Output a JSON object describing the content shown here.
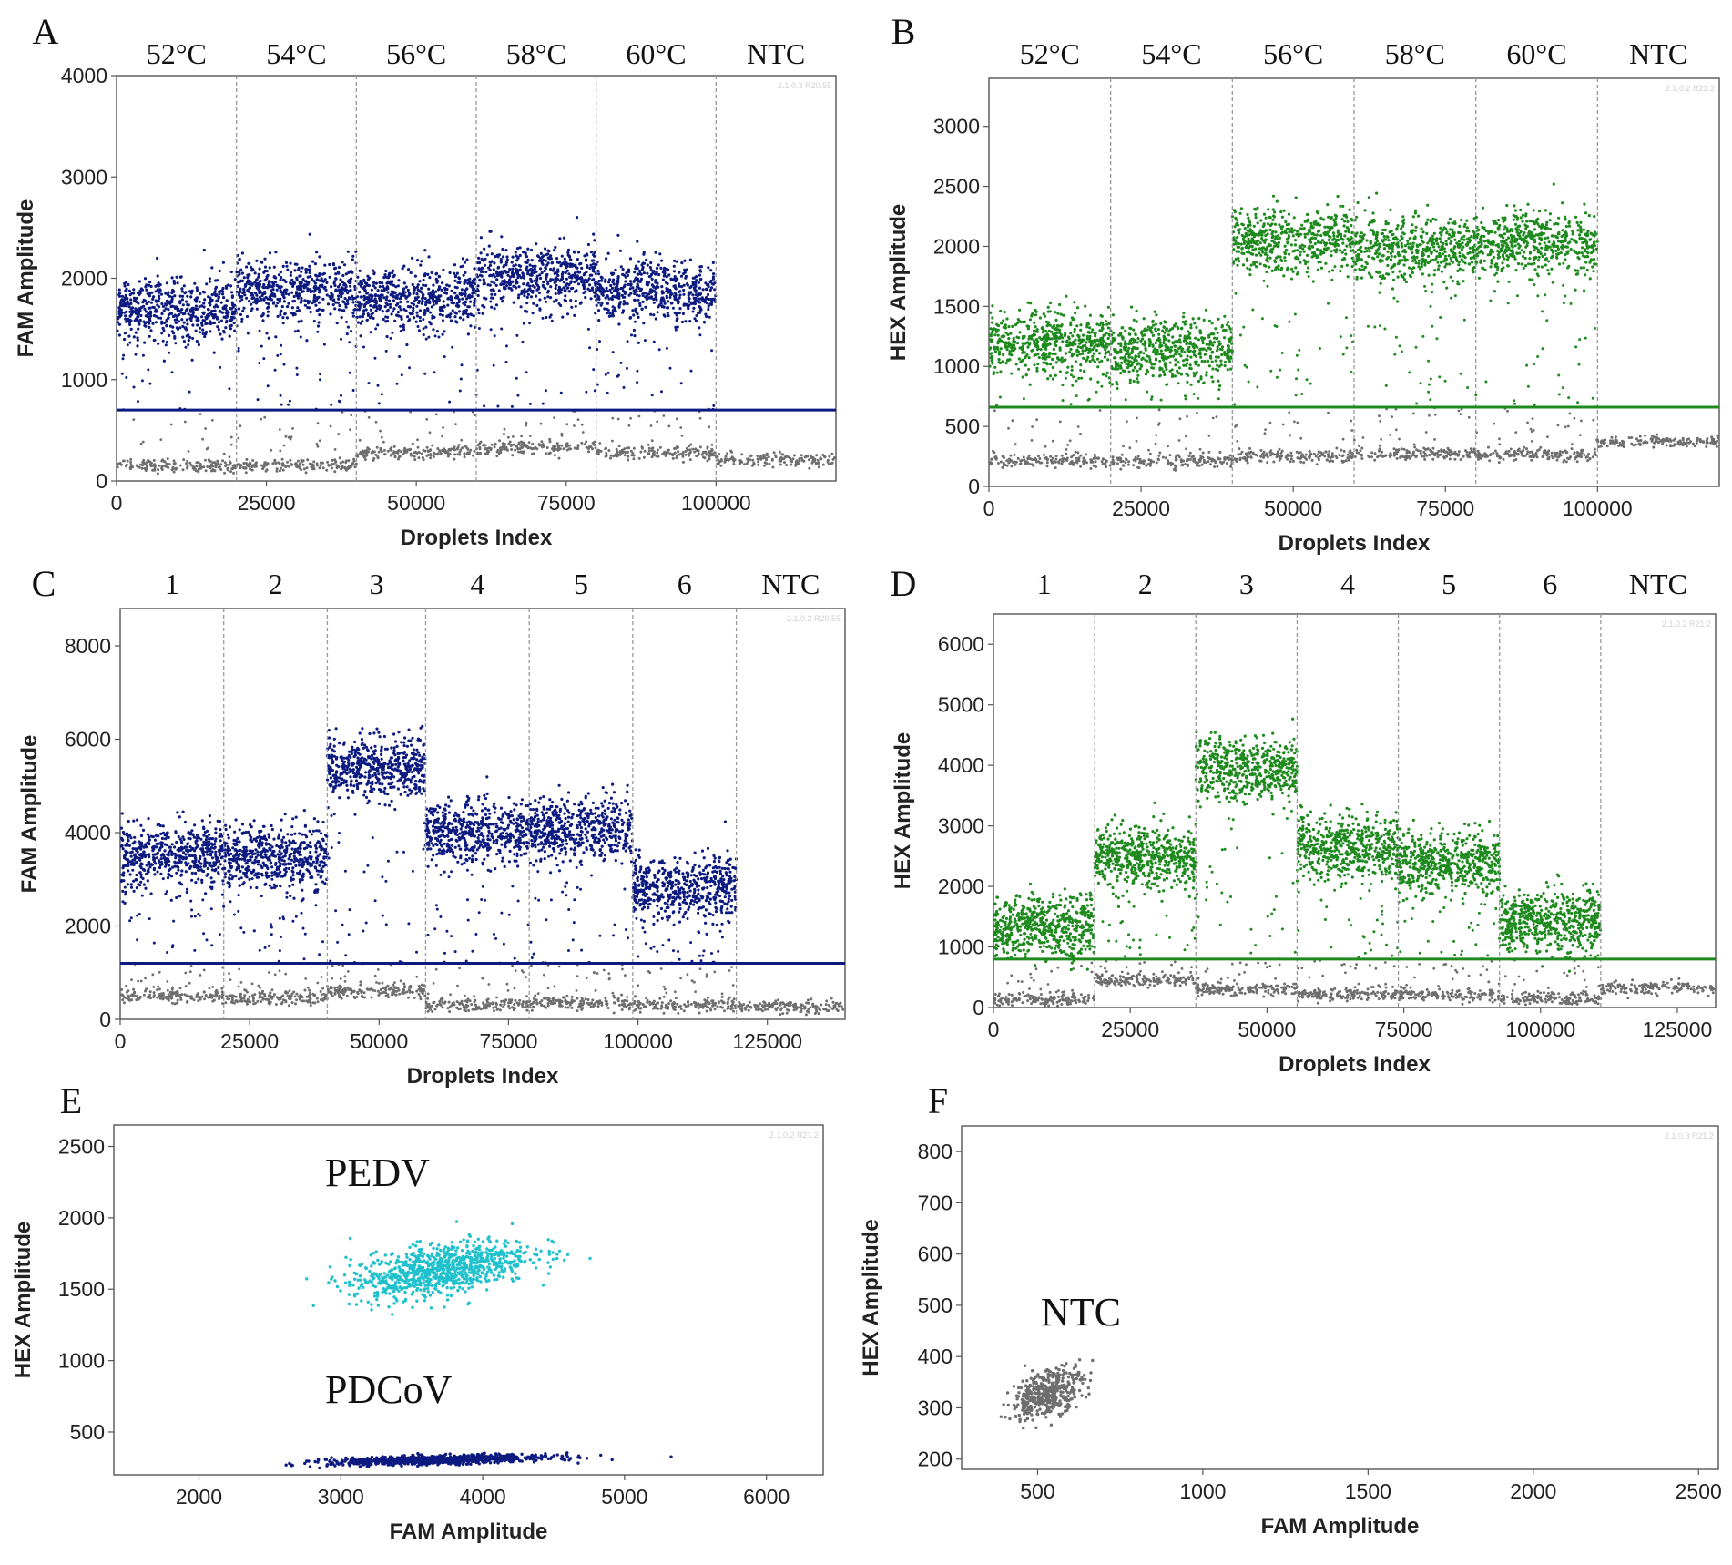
{
  "figure": {
    "colors": {
      "fam": "#0d1b80",
      "hex": "#1e8a1e",
      "neg": "#6e6e6e",
      "pedv": "#1fc1cc",
      "pdcov": "#0d1b80"
    }
  },
  "chart_data": [
    {
      "id": "A",
      "panel_label": "A",
      "type": "scatter",
      "title": "",
      "xlabel": "Droplets Index",
      "ylabel": "FAM Amplitude",
      "xlim": [
        0,
        120000
      ],
      "ylim": [
        0,
        4000
      ],
      "xticks": [
        0,
        25000,
        50000,
        75000,
        100000
      ],
      "yticks": [
        0,
        1000,
        2000,
        3000,
        4000
      ],
      "watermark": "2.1.0.3 R20.55",
      "group_labels": [
        "52°C",
        "54°C",
        "56°C",
        "58°C",
        "60°C",
        "NTC"
      ],
      "group_bounds": [
        0,
        20000,
        40000,
        60000,
        80000,
        100000,
        120000
      ],
      "positive_means": [
        1700,
        1900,
        1800,
        2020,
        1880,
        null
      ],
      "negative_means": [
        150,
        150,
        280,
        330,
        280,
        210
      ],
      "threshold": 700,
      "channel": "fam"
    },
    {
      "id": "B",
      "panel_label": "B",
      "type": "scatter",
      "title": "",
      "xlabel": "Droplets Index",
      "ylabel": "HEX Amplitude",
      "xlim": [
        0,
        120000
      ],
      "ylim": [
        0,
        3400
      ],
      "xticks": [
        0,
        25000,
        50000,
        75000,
        100000
      ],
      "yticks": [
        0,
        500,
        1000,
        1500,
        2000,
        2500,
        3000
      ],
      "watermark": "2.1.0.2 R21.2",
      "group_labels": [
        "52°C",
        "54°C",
        "56°C",
        "58°C",
        "60°C",
        "NTC"
      ],
      "group_bounds": [
        0,
        20000,
        40000,
        60000,
        80000,
        100000,
        120000
      ],
      "positive_means": [
        1200,
        1150,
        2050,
        1980,
        2030,
        null
      ],
      "negative_means": [
        210,
        210,
        250,
        270,
        260,
        370
      ],
      "threshold": 660,
      "channel": "hex"
    },
    {
      "id": "C",
      "panel_label": "C",
      "type": "scatter",
      "title": "",
      "xlabel": "Droplets Index",
      "ylabel": "FAM Amplitude",
      "xlim": [
        0,
        140000
      ],
      "ylim": [
        0,
        8800
      ],
      "xticks": [
        0,
        25000,
        50000,
        75000,
        100000,
        125000
      ],
      "yticks": [
        0,
        2000,
        4000,
        6000,
        8000
      ],
      "watermark": "2.1.0.2 R20.55",
      "group_labels": [
        "1",
        "2",
        "3",
        "4",
        "5",
        "6",
        "NTC"
      ],
      "group_bounds": [
        0,
        20000,
        40000,
        59000,
        79000,
        99000,
        119000,
        140000
      ],
      "positive_means": [
        3500,
        3500,
        5400,
        4000,
        4100,
        2800,
        null
      ],
      "negative_means": [
        500,
        450,
        600,
        300,
        350,
        300,
        280
      ],
      "threshold": 1200,
      "channel": "fam"
    },
    {
      "id": "D",
      "panel_label": "D",
      "type": "scatter",
      "title": "",
      "xlabel": "Droplets Index",
      "ylabel": "HEX Amplitude",
      "xlim": [
        0,
        132000
      ],
      "ylim": [
        0,
        6500
      ],
      "xticks": [
        0,
        25000,
        50000,
        75000,
        100000,
        125000
      ],
      "yticks": [
        0,
        1000,
        2000,
        3000,
        4000,
        5000,
        6000
      ],
      "watermark": "2.1.0.2 R21.2",
      "group_labels": [
        "1",
        "2",
        "3",
        "4",
        "5",
        "6",
        "NTC"
      ],
      "group_bounds": [
        0,
        18500,
        37000,
        55500,
        74000,
        92500,
        111000,
        132000
      ],
      "positive_means": [
        1350,
        2500,
        3950,
        2650,
        2400,
        1420,
        null
      ],
      "negative_means": [
        130,
        450,
        300,
        220,
        200,
        150,
        330
      ],
      "threshold": 800,
      "channel": "hex"
    },
    {
      "id": "E",
      "panel_label": "E",
      "type": "scatter",
      "title": "",
      "xlabel": "FAM Amplitude",
      "ylabel": "HEX Amplitude",
      "xlim": [
        1400,
        6400
      ],
      "ylim": [
        200,
        2650
      ],
      "xticks": [
        2000,
        3000,
        4000,
        5000,
        6000
      ],
      "yticks": [
        500,
        1000,
        1500,
        2000,
        2500
      ],
      "watermark": "2.1.0.2 R21.2",
      "clusters": [
        {
          "name": "PEDV",
          "fam_mean": 3700,
          "fam_sd": 320,
          "hex_mean": 1640,
          "hex_sd": 110,
          "color": "pedv"
        },
        {
          "name": "PDCoV",
          "fam_mean": 3700,
          "fam_sd": 380,
          "hex_mean": 305,
          "hex_sd": 18,
          "color": "pdcov"
        }
      ],
      "annotations": [
        "PEDV",
        "PDCoV"
      ]
    },
    {
      "id": "F",
      "panel_label": "F",
      "type": "scatter",
      "title": "",
      "xlabel": "FAM Amplitude",
      "ylabel": "HEX Amplitude",
      "xlim": [
        270,
        2560
      ],
      "ylim": [
        180,
        850
      ],
      "xticks": [
        500,
        1000,
        1500,
        2000,
        2500
      ],
      "yticks": [
        200,
        300,
        400,
        500,
        600,
        700,
        800
      ],
      "watermark": "2.1.0.3 R21.2",
      "clusters": [
        {
          "name": "NTC",
          "fam_mean": 530,
          "fam_sd": 55,
          "hex_mean": 330,
          "hex_sd": 28,
          "color": "neg"
        }
      ],
      "annotations": [
        "NTC"
      ]
    }
  ]
}
